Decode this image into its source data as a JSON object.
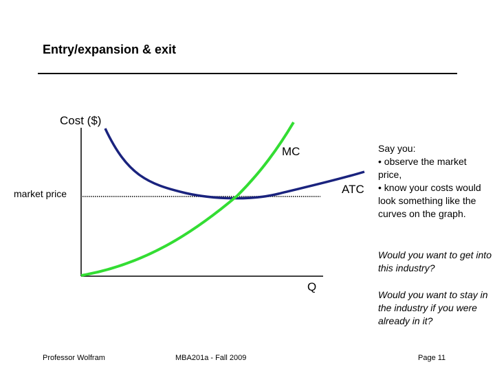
{
  "slide": {
    "title": "Entry/expansion & exit"
  },
  "graph": {
    "y_axis_label": "Cost ($)",
    "x_axis_label": "Q",
    "mc_label": "MC",
    "atc_label": "ATC",
    "price_label": "market price",
    "colors": {
      "mc": "#33dd33",
      "atc": "#1a237e",
      "axes": "#000000"
    }
  },
  "sidebar": {
    "intro": "Say you:",
    "bullet1": "• observe the market price,",
    "bullet2": "• know your costs would look something like the curves on the graph.",
    "question1": "Would you want to get into this industry?",
    "question2": "Would you want to stay in the industry if you were already in it?"
  },
  "footer": {
    "author": "Professor Wolfram",
    "course": "MBA201a - Fall 2009",
    "page": "Page 11"
  }
}
